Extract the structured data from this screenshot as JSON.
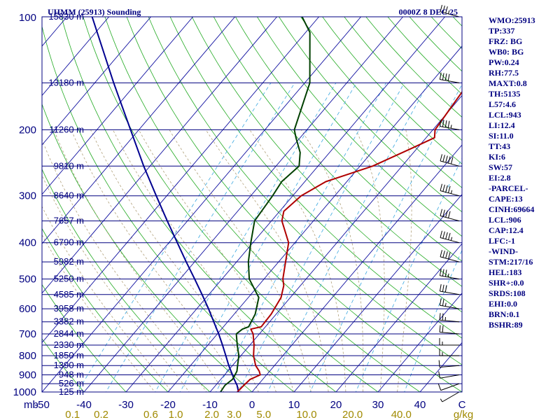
{
  "header": {
    "station_title": "UHMM (25913) Sounding",
    "valid_time": "0000Z  8 DEC 25"
  },
  "colors": {
    "frame": "#000080",
    "isobar": "#000080",
    "isotherm": "#1010a0",
    "dry_adiabat": "#22aa22",
    "moist_adiabat": "#b0a07a",
    "mixing_ratio": "#3aa8e0",
    "temperature": "#b00000",
    "dewpoint": "#004000",
    "parcel": "#000090",
    "mixing_ratio_label": "#a08a00"
  },
  "chart_data": {
    "type": "line",
    "title": "UHMM (25913) Sounding",
    "xlabel": "C",
    "ylabel": "mb",
    "xlim": [
      -50,
      50
    ],
    "ylim": [
      1000,
      100
    ],
    "pressure_ticks": [
      100,
      200,
      300,
      400,
      500,
      600,
      700,
      800,
      900,
      1000
    ],
    "temperature_ticks": [
      -50,
      -40,
      -30,
      -20,
      -10,
      0,
      10,
      20,
      30,
      40
    ],
    "temperature_tick_labels": [
      "-50",
      "-40",
      "-30",
      "-20",
      "-10",
      "0",
      "10",
      "20",
      "30",
      "40"
    ],
    "axis_unit_label": "mb",
    "temperature_unit_label": "C",
    "mixing_ratio_unit_label": "g/kg",
    "mixing_ratio_ticks": [
      {
        "label": "0.1",
        "value": 0.1
      },
      {
        "label": "0.2",
        "value": 0.2
      },
      {
        "label": "0.6",
        "value": 0.6
      },
      {
        "label": "1.0",
        "value": 1.0
      },
      {
        "label": "2.0",
        "value": 2.0
      },
      {
        "label": "3.0",
        "value": 3.0
      },
      {
        "label": "5.0",
        "value": 5.0
      },
      {
        "label": "10.0",
        "value": 10.0
      },
      {
        "label": "20.0",
        "value": 20.0
      },
      {
        "label": "40.0",
        "value": 40.0
      }
    ],
    "height_labels": [
      {
        "p": 100,
        "label": "15830 m"
      },
      {
        "p": 150,
        "label": "13180 m"
      },
      {
        "p": 200,
        "label": "11260 m"
      },
      {
        "p": 250,
        "label": "9810 m"
      },
      {
        "p": 300,
        "label": "8640 m"
      },
      {
        "p": 350,
        "label": "7657 m"
      },
      {
        "p": 400,
        "label": "6790 m"
      },
      {
        "p": 450,
        "label": "5982 m"
      },
      {
        "p": 500,
        "label": "5250 m"
      },
      {
        "p": 550,
        "label": "4585 m"
      },
      {
        "p": 600,
        "label": "3958 m"
      },
      {
        "p": 650,
        "label": "3382 m"
      },
      {
        "p": 700,
        "label": "2844 m"
      },
      {
        "p": 750,
        "label": "2330 m"
      },
      {
        "p": 800,
        "label": "1850 m"
      },
      {
        "p": 850,
        "label": "1390 m"
      },
      {
        "p": 900,
        "label": "948 m"
      },
      {
        "p": 950,
        "label": "526 m"
      },
      {
        "p": 1000,
        "label": "125 m"
      }
    ],
    "series": [
      {
        "name": "Temperature",
        "points": [
          {
            "p": 1000,
            "t": -3.5
          },
          {
            "p": 960,
            "t": -3.3
          },
          {
            "p": 925,
            "t": -3.0
          },
          {
            "p": 900,
            "t": -1.5
          },
          {
            "p": 880,
            "t": -2.5
          },
          {
            "p": 850,
            "t": -4.5
          },
          {
            "p": 800,
            "t": -7.0
          },
          {
            "p": 750,
            "t": -9.0
          },
          {
            "p": 700,
            "t": -11.5
          },
          {
            "p": 680,
            "t": -13.0
          },
          {
            "p": 670,
            "t": -11.0
          },
          {
            "p": 620,
            "t": -11.2
          },
          {
            "p": 560,
            "t": -12.2
          },
          {
            "p": 520,
            "t": -14.0
          },
          {
            "p": 500,
            "t": -15.5
          },
          {
            "p": 400,
            "t": -21.5
          },
          {
            "p": 350,
            "t": -27.5
          },
          {
            "p": 330,
            "t": -29.0
          },
          {
            "p": 300,
            "t": -28.0
          },
          {
            "p": 275,
            "t": -25.0
          },
          {
            "p": 250,
            "t": -17.0
          },
          {
            "p": 225,
            "t": -11.5
          },
          {
            "p": 210,
            "t": -8.0
          },
          {
            "p": 200,
            "t": -9.5
          },
          {
            "p": 150,
            "t": -11.0
          },
          {
            "p": 110,
            "t": -13.5
          },
          {
            "p": 105,
            "t": -14.3
          }
        ]
      },
      {
        "name": "Dewpoint",
        "points": [
          {
            "p": 1000,
            "t": -7.5
          },
          {
            "p": 960,
            "t": -7.8
          },
          {
            "p": 925,
            "t": -7.2
          },
          {
            "p": 900,
            "t": -7.5
          },
          {
            "p": 880,
            "t": -7.8
          },
          {
            "p": 850,
            "t": -8.8
          },
          {
            "p": 800,
            "t": -10.5
          },
          {
            "p": 750,
            "t": -13.0
          },
          {
            "p": 700,
            "t": -15.5
          },
          {
            "p": 680,
            "t": -15.0
          },
          {
            "p": 670,
            "t": -14.0
          },
          {
            "p": 620,
            "t": -15.0
          },
          {
            "p": 560,
            "t": -17.5
          },
          {
            "p": 500,
            "t": -23.5
          },
          {
            "p": 450,
            "t": -27.2
          },
          {
            "p": 400,
            "t": -30.5
          },
          {
            "p": 350,
            "t": -34.0
          },
          {
            "p": 300,
            "t": -34.8
          },
          {
            "p": 275,
            "t": -35.5
          },
          {
            "p": 250,
            "t": -34.5
          },
          {
            "p": 230,
            "t": -37.0
          },
          {
            "p": 210,
            "t": -41.0
          },
          {
            "p": 200,
            "t": -43.0
          },
          {
            "p": 150,
            "t": -48.8
          },
          {
            "p": 110,
            "t": -59.0
          },
          {
            "p": 100,
            "t": -64.0
          }
        ]
      },
      {
        "name": "Parcel",
        "points": [
          {
            "p": 1000,
            "t": -3.2
          },
          {
            "p": 960,
            "t": -4.9
          },
          {
            "p": 925,
            "t": -6.8
          },
          {
            "p": 906,
            "t": -7.8
          },
          {
            "p": 850,
            "t": -10.9
          },
          {
            "p": 800,
            "t": -13.6
          },
          {
            "p": 750,
            "t": -16.5
          },
          {
            "p": 700,
            "t": -19.7
          },
          {
            "p": 650,
            "t": -23.3
          },
          {
            "p": 600,
            "t": -27.2
          },
          {
            "p": 550,
            "t": -31.6
          },
          {
            "p": 500,
            "t": -36.5
          },
          {
            "p": 450,
            "t": -42.0
          },
          {
            "p": 400,
            "t": -48.0
          },
          {
            "p": 350,
            "t": -54.8
          },
          {
            "p": 300,
            "t": -62.5
          },
          {
            "p": 250,
            "t": -71.5
          },
          {
            "p": 200,
            "t": -82.0
          },
          {
            "p": 150,
            "t": -95.5
          },
          {
            "p": 100,
            "t": -114.0
          }
        ]
      }
    ],
    "wind_barbs": [
      {
        "p": 1000,
        "dir": 240,
        "kt": 5
      },
      {
        "p": 950,
        "dir": 250,
        "kt": 10
      },
      {
        "p": 900,
        "dir": 260,
        "kt": 10
      },
      {
        "p": 850,
        "dir": 265,
        "kt": 10
      },
      {
        "p": 800,
        "dir": 270,
        "kt": 15
      },
      {
        "p": 750,
        "dir": 270,
        "kt": 15
      },
      {
        "p": 700,
        "dir": 275,
        "kt": 20
      },
      {
        "p": 650,
        "dir": 275,
        "kt": 25
      },
      {
        "p": 600,
        "dir": 280,
        "kt": 25
      },
      {
        "p": 550,
        "dir": 280,
        "kt": 30
      },
      {
        "p": 500,
        "dir": 280,
        "kt": 35
      },
      {
        "p": 450,
        "dir": 285,
        "kt": 40
      },
      {
        "p": 400,
        "dir": 285,
        "kt": 45
      },
      {
        "p": 350,
        "dir": 285,
        "kt": 40
      },
      {
        "p": 300,
        "dir": 285,
        "kt": 45
      },
      {
        "p": 250,
        "dir": 285,
        "kt": 50
      },
      {
        "p": 200,
        "dir": 280,
        "kt": 45
      },
      {
        "p": 150,
        "dir": 280,
        "kt": 40
      },
      {
        "p": 100,
        "dir": 285,
        "kt": 35
      }
    ]
  },
  "indices": [
    "WMO:25913",
    "TP:337",
    "FRZ: BG",
    "WB0: BG",
    "PW:0.24",
    "RH:77.5",
    "MAXT:0.8",
    "TH:5135",
    "L57:4.6",
    "LCL:943",
    "LI:12.4",
    "SI:11.0",
    "TT:43",
    "KI:6",
    "SW:57",
    "EI:2.8",
    "-PARCEL-",
    "CAPE:13",
    "CINH:69664",
    "LCL:906",
    "CAP:12.4",
    "LFC:-1",
    "-WIND-",
    "STM:217/16",
    "HEL:183",
    "SHR+:0.0",
    "SRDS:108",
    "EHI:0.0",
    "BRN:0.1",
    "BSHR:89"
  ]
}
